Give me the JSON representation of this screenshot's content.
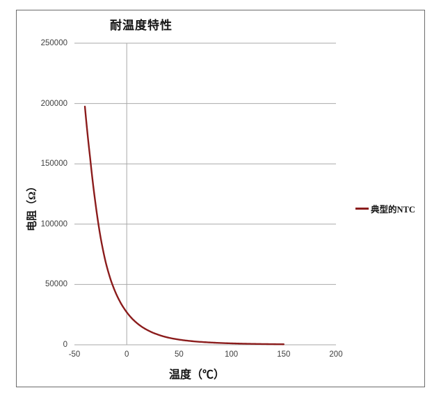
{
  "colors": {
    "series": "#8b1c1c",
    "gridline": "#a9a9a9",
    "frame_border": "#6b6b6b",
    "tick_text": "#3f3f3f",
    "title_text": "#141414",
    "background": "#ffffff"
  },
  "chart_data": {
    "type": "line",
    "title": "耐温度特性",
    "xlabel": "温度（℃）",
    "ylabel": "电阻（Ω）",
    "xlim": [
      -50,
      200
    ],
    "ylim": [
      0,
      250000
    ],
    "x_ticks": [
      -50,
      0,
      50,
      100,
      150,
      200
    ],
    "x_tick_labels": [
      "-50",
      "0",
      "50",
      "100",
      "150",
      "200"
    ],
    "y_ticks": [
      0,
      50000,
      100000,
      150000,
      200000,
      250000
    ],
    "y_tick_labels": [
      "0",
      "50000",
      "100000",
      "150000",
      "200000",
      "250000"
    ],
    "grid": "horizontal gridlines at each y tick; single vertical gridline at x=0",
    "legend_position": "right-middle",
    "series": [
      {
        "name": "典型的NTC",
        "color": "#8b1c1c",
        "points": [
          [
            -40,
            197500
          ],
          [
            -35,
            155000
          ],
          [
            -30,
            118000
          ],
          [
            -25,
            89000
          ],
          [
            -20,
            68000
          ],
          [
            -15,
            53000
          ],
          [
            -10,
            42000
          ],
          [
            -5,
            33500
          ],
          [
            0,
            27000
          ],
          [
            5,
            21800
          ],
          [
            10,
            17800
          ],
          [
            15,
            14600
          ],
          [
            20,
            12100
          ],
          [
            25,
            10000
          ],
          [
            30,
            8400
          ],
          [
            35,
            7000
          ],
          [
            40,
            5900
          ],
          [
            45,
            5000
          ],
          [
            50,
            4300
          ],
          [
            60,
            3200
          ],
          [
            70,
            2450
          ],
          [
            80,
            1900
          ],
          [
            90,
            1500
          ],
          [
            100,
            1180
          ],
          [
            110,
            950
          ],
          [
            120,
            770
          ],
          [
            130,
            630
          ],
          [
            140,
            520
          ],
          [
            150,
            430
          ]
        ]
      }
    ]
  }
}
